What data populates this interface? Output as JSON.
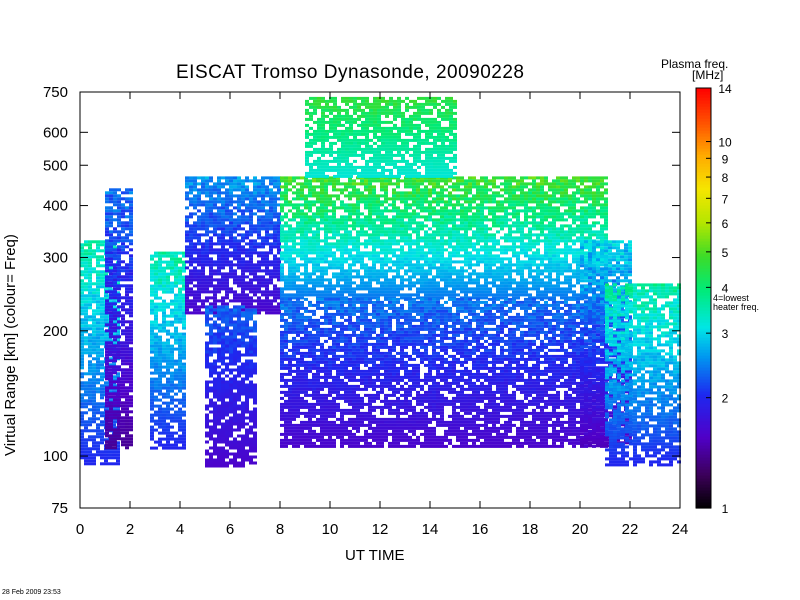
{
  "chart_data": {
    "type": "heatmap",
    "title": "EISCAT Tromso Dynasonde,  20090228",
    "xlabel": "UT TIME",
    "ylabel": "Virtual Range [km]     (colour= Freq)",
    "x_ticks": [
      0,
      2,
      4,
      6,
      8,
      10,
      12,
      14,
      16,
      18,
      20,
      22,
      24
    ],
    "y_ticks": [
      75,
      100,
      200,
      300,
      400,
      500,
      600,
      750
    ],
    "xlim": [
      0,
      24
    ],
    "ylim": [
      75,
      750
    ],
    "y_scale": "log",
    "colorbar": {
      "title_line1": "Plasma freq.",
      "title_line2": "[MHz]",
      "ticks": [
        1,
        2,
        3,
        4,
        5,
        6,
        7,
        8,
        9,
        10,
        14
      ],
      "scale": "log",
      "range": [
        1,
        14
      ],
      "note_line1": "4=lowest",
      "note_line2": "heater freq."
    },
    "bands": [
      {
        "t_start": 0.0,
        "t_end": 1.5,
        "h_low": 95,
        "h_high": 330,
        "f_low": 2.0,
        "f_high": 3.5
      },
      {
        "t_start": 1.0,
        "t_end": 2.0,
        "h_low": 105,
        "h_high": 440,
        "f_low": 1.4,
        "f_high": 2.4
      },
      {
        "t_start": 2.8,
        "t_end": 4.2,
        "h_low": 105,
        "h_high": 310,
        "f_low": 2.0,
        "f_high": 3.6
      },
      {
        "t_start": 4.2,
        "t_end": 8.0,
        "h_low": 220,
        "h_high": 470,
        "f_low": 1.6,
        "f_high": 2.6
      },
      {
        "t_start": 5.0,
        "t_end": 7.0,
        "h_low": 95,
        "h_high": 230,
        "f_low": 1.6,
        "f_high": 2.3
      },
      {
        "t_start": 8.0,
        "t_end": 21.0,
        "h_low": 240,
        "h_high": 470,
        "f_low": 2.4,
        "f_high": 4.8
      },
      {
        "t_start": 8.0,
        "t_end": 21.0,
        "h_low": 105,
        "h_high": 240,
        "f_low": 1.6,
        "f_high": 2.4
      },
      {
        "t_start": 9.0,
        "t_end": 15.0,
        "h_low": 470,
        "h_high": 730,
        "f_low": 3.2,
        "f_high": 4.6
      },
      {
        "t_start": 20.0,
        "t_end": 22.0,
        "h_low": 105,
        "h_high": 330,
        "f_low": 1.5,
        "f_high": 3.0
      },
      {
        "t_start": 21.0,
        "t_end": 24.0,
        "h_low": 95,
        "h_high": 260,
        "f_low": 2.0,
        "f_high": 3.6
      }
    ],
    "grid": false
  },
  "footer": {
    "timestamp": "28 Feb 2009 23:53"
  }
}
